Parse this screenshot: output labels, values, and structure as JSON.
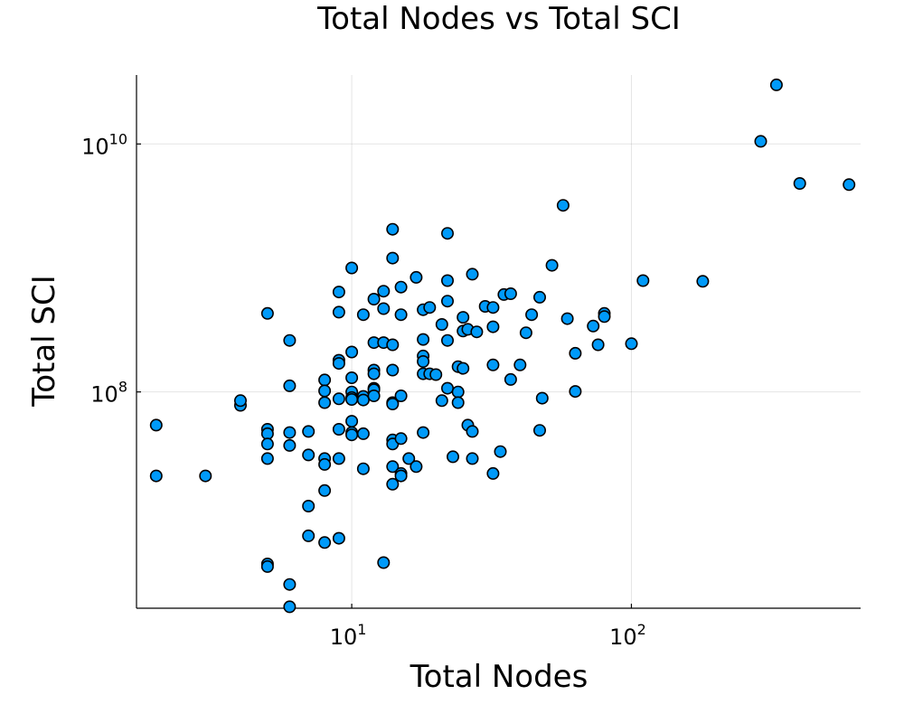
{
  "chart_data": {
    "type": "scatter",
    "title": "Total Nodes vs Total SCI",
    "xlabel": "Total Nodes",
    "ylabel": "Total SCI",
    "xscale": "log",
    "yscale": "log",
    "xlim": [
      1.7,
      660
    ],
    "ylim": [
      1800000,
      36000000000
    ],
    "xticks": [
      {
        "value": 10,
        "base": "10",
        "exp": "1"
      },
      {
        "value": 100,
        "base": "10",
        "exp": "2"
      }
    ],
    "yticks": [
      {
        "value": 100000000,
        "base": "10",
        "exp": "8"
      },
      {
        "value": 10000000000,
        "base": "10",
        "exp": "10"
      }
    ],
    "grid": true,
    "legend": "none",
    "marker_color": "#009af9",
    "points": [
      [
        2,
        54000000
      ],
      [
        2,
        21000000
      ],
      [
        3,
        21000000
      ],
      [
        4,
        78000000
      ],
      [
        4,
        85000000
      ],
      [
        5,
        430000000
      ],
      [
        5,
        50000000
      ],
      [
        5,
        46000000
      ],
      [
        5,
        38000000
      ],
      [
        5,
        29000000
      ],
      [
        5,
        4100000
      ],
      [
        5,
        3900000
      ],
      [
        6,
        260000000
      ],
      [
        6,
        112000000
      ],
      [
        6,
        47000000
      ],
      [
        6,
        37000000
      ],
      [
        6,
        2800000
      ],
      [
        6,
        1850000
      ],
      [
        7,
        48000000
      ],
      [
        7,
        31000000
      ],
      [
        7,
        12000000
      ],
      [
        7,
        6900000
      ],
      [
        8,
        125000000
      ],
      [
        8,
        102000000
      ],
      [
        8,
        82000000
      ],
      [
        8,
        29000000
      ],
      [
        8,
        26000000
      ],
      [
        8,
        16000000
      ],
      [
        8,
        6100000
      ],
      [
        9,
        640000000
      ],
      [
        9,
        440000000
      ],
      [
        9,
        180000000
      ],
      [
        9,
        170000000
      ],
      [
        9,
        88000000
      ],
      [
        9,
        50000000
      ],
      [
        9,
        29000000
      ],
      [
        9,
        6600000
      ],
      [
        10,
        1000000000
      ],
      [
        10,
        210000000
      ],
      [
        10,
        130000000
      ],
      [
        10,
        100000000
      ],
      [
        10,
        90000000
      ],
      [
        10,
        87000000
      ],
      [
        10,
        58000000
      ],
      [
        10,
        47000000
      ],
      [
        10,
        45000000
      ],
      [
        11,
        420000000
      ],
      [
        11,
        92000000
      ],
      [
        11,
        86000000
      ],
      [
        11,
        46000000
      ],
      [
        11,
        24000000
      ],
      [
        12,
        560000000
      ],
      [
        12,
        250000000
      ],
      [
        12,
        150000000
      ],
      [
        12,
        140000000
      ],
      [
        12,
        107000000
      ],
      [
        12,
        104000000
      ],
      [
        12,
        93000000
      ],
      [
        13,
        650000000
      ],
      [
        13,
        470000000
      ],
      [
        13,
        250000000
      ],
      [
        13,
        4200000
      ],
      [
        14,
        2050000000
      ],
      [
        14,
        1200000000
      ],
      [
        14,
        240000000
      ],
      [
        14,
        150000000
      ],
      [
        14,
        82000000
      ],
      [
        14,
        80000000
      ],
      [
        14,
        41000000
      ],
      [
        14,
        38000000
      ],
      [
        14,
        25000000
      ],
      [
        14,
        18000000
      ],
      [
        15,
        700000000
      ],
      [
        15,
        420000000
      ],
      [
        15,
        93000000
      ],
      [
        15,
        42000000
      ],
      [
        15,
        22000000
      ],
      [
        15,
        21000000
      ],
      [
        16,
        29000000
      ],
      [
        17,
        840000000
      ],
      [
        17,
        25000000
      ],
      [
        18,
        460000000
      ],
      [
        18,
        265000000
      ],
      [
        18,
        195000000
      ],
      [
        18,
        176000000
      ],
      [
        18,
        140000000
      ],
      [
        18,
        47000000
      ],
      [
        19,
        480000000
      ],
      [
        19,
        140000000
      ],
      [
        20,
        138000000
      ],
      [
        21,
        350000000
      ],
      [
        21,
        85000000
      ],
      [
        22,
        1900000000
      ],
      [
        22,
        790000000
      ],
      [
        22,
        540000000
      ],
      [
        22,
        260000000
      ],
      [
        22,
        107000000
      ],
      [
        23,
        30000000
      ],
      [
        24,
        160000000
      ],
      [
        24,
        100000000
      ],
      [
        24,
        82000000
      ],
      [
        25,
        400000000
      ],
      [
        25,
        310000000
      ],
      [
        25,
        155000000
      ],
      [
        26,
        320000000
      ],
      [
        26,
        54000000
      ],
      [
        27,
        890000000
      ],
      [
        27,
        48000000
      ],
      [
        27,
        29000000
      ],
      [
        28,
        305000000
      ],
      [
        30,
        490000000
      ],
      [
        32,
        480000000
      ],
      [
        32,
        335000000
      ],
      [
        32,
        165000000
      ],
      [
        32,
        22000000
      ],
      [
        34,
        33000000
      ],
      [
        35,
        610000000
      ],
      [
        37,
        620000000
      ],
      [
        37,
        126000000
      ],
      [
        40,
        165000000
      ],
      [
        42,
        300000000
      ],
      [
        44,
        420000000
      ],
      [
        47,
        580000000
      ],
      [
        47,
        49000000
      ],
      [
        48,
        89000000
      ],
      [
        52,
        1050000000
      ],
      [
        57,
        3200000000
      ],
      [
        59,
        390000000
      ],
      [
        63,
        205000000
      ],
      [
        63,
        101000000
      ],
      [
        73,
        340000000
      ],
      [
        76,
        240000000
      ],
      [
        80,
        430000000
      ],
      [
        80,
        405000000
      ],
      [
        100,
        245000000
      ],
      [
        110,
        790000000
      ],
      [
        180,
        780000000
      ],
      [
        290,
        10500000000
      ],
      [
        330,
        30000000000
      ],
      [
        400,
        4800000000
      ],
      [
        600,
        4700000000
      ]
    ]
  }
}
